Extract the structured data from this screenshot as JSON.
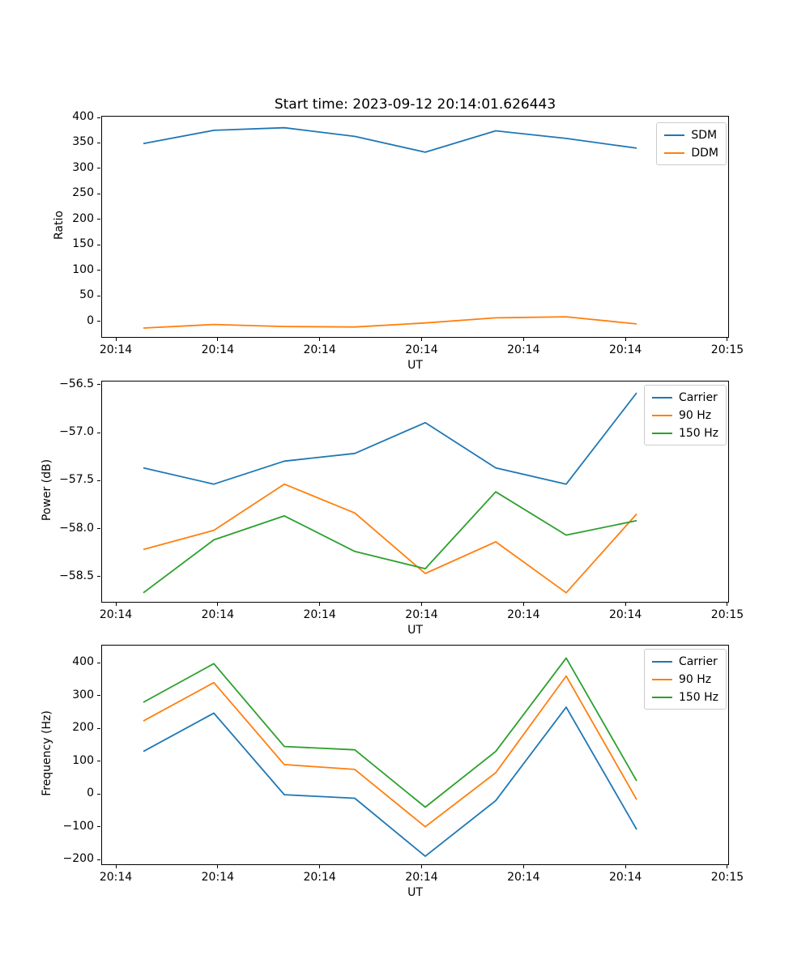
{
  "figure": {
    "title": "Start time: 2023-09-12 20:14:01.626443"
  },
  "chart_data": [
    {
      "type": "line",
      "title": "Start time: 2023-09-12 20:14:01.626443",
      "xlabel": "UT",
      "ylabel": "Ratio",
      "grid": false,
      "legend_position": "upper right",
      "x_tick_labels": [
        "20:14",
        "20:14",
        "20:14",
        "20:14",
        "20:14",
        "20:14",
        "20:15"
      ],
      "y_ticks": [
        {
          "label": "0",
          "value": 0
        },
        {
          "label": "50",
          "value": 50
        },
        {
          "label": "100",
          "value": 100
        },
        {
          "label": "150",
          "value": 150
        },
        {
          "label": "200",
          "value": 200
        },
        {
          "label": "250",
          "value": 250
        },
        {
          "label": "300",
          "value": 300
        },
        {
          "label": "350",
          "value": 350
        },
        {
          "label": "400",
          "value": 400
        }
      ],
      "ylim": [
        -32.3,
        403.2
      ],
      "series": [
        {
          "name": "SDM",
          "color": "#1f77b4",
          "values": [
            352,
            378,
            383,
            366,
            335,
            377,
            362,
            343
          ]
        },
        {
          "name": "DDM",
          "color": "#ff7f0e",
          "values": [
            -10,
            -3,
            -7,
            -8,
            0,
            10,
            12,
            -2
          ]
        }
      ]
    },
    {
      "type": "line",
      "title": "",
      "xlabel": "UT",
      "ylabel": "Power (dB)",
      "grid": false,
      "legend_position": "upper right",
      "x_tick_labels": [
        "20:14",
        "20:14",
        "20:14",
        "20:14",
        "20:14",
        "20:14",
        "20:15"
      ],
      "y_ticks": [
        {
          "label": "−56.5",
          "value": -56.5
        },
        {
          "label": "−57.0",
          "value": -57.0
        },
        {
          "label": "−57.5",
          "value": -57.5
        },
        {
          "label": "−58.0",
          "value": -58.0
        },
        {
          "label": "−58.5",
          "value": -58.5
        }
      ],
      "ylim": [
        -58.77,
        -56.46
      ],
      "series": [
        {
          "name": "Carrier",
          "color": "#1f77b4",
          "values": [
            -57.35,
            -57.52,
            -57.28,
            -57.2,
            -56.88,
            -57.35,
            -57.52,
            -56.57
          ]
        },
        {
          "name": "90 Hz",
          "color": "#ff7f0e",
          "values": [
            -58.2,
            -58.0,
            -57.52,
            -57.82,
            -58.45,
            -58.12,
            -58.65,
            -57.83
          ]
        },
        {
          "name": "150 Hz",
          "color": "#2ca02c",
          "values": [
            -58.65,
            -58.1,
            -57.85,
            -58.22,
            -58.4,
            -57.6,
            -58.05,
            -57.9
          ]
        }
      ]
    },
    {
      "type": "line",
      "title": "",
      "xlabel": "UT",
      "ylabel": "Frequency (Hz)",
      "grid": false,
      "legend_position": "upper right",
      "x_tick_labels": [
        "20:14",
        "20:14",
        "20:14",
        "20:14",
        "20:14",
        "20:14",
        "20:15"
      ],
      "y_ticks": [
        {
          "label": "−200",
          "value": -200
        },
        {
          "label": "−100",
          "value": -100
        },
        {
          "label": "0",
          "value": 0
        },
        {
          "label": "100",
          "value": 100
        },
        {
          "label": "200",
          "value": 200
        },
        {
          "label": "300",
          "value": 300
        },
        {
          "label": "400",
          "value": 400
        }
      ],
      "ylim": [
        -216.8,
        455.6
      ],
      "series": [
        {
          "name": "Carrier",
          "color": "#1f77b4",
          "values": [
            135,
            252,
            3,
            -8,
            -185,
            -15,
            270,
            -103
          ]
        },
        {
          "name": "90 Hz",
          "color": "#ff7f0e",
          "values": [
            228,
            345,
            95,
            80,
            -95,
            70,
            365,
            -12
          ]
        },
        {
          "name": "150 Hz",
          "color": "#2ca02c",
          "values": [
            285,
            403,
            150,
            140,
            -35,
            135,
            420,
            45
          ]
        }
      ]
    }
  ]
}
